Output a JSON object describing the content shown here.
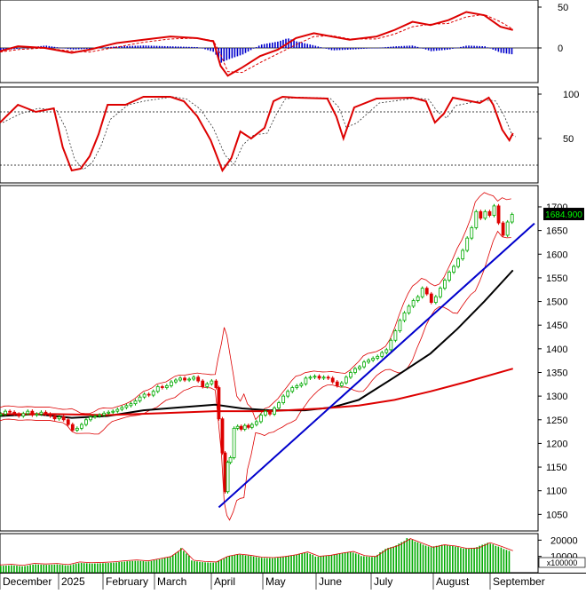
{
  "chart_data": {
    "type": "line",
    "price_panel": {
      "title": "",
      "ylim": [
        1015,
        1745
      ],
      "y_ticks": [
        1050,
        1100,
        1150,
        1200,
        1250,
        1300,
        1350,
        1400,
        1450,
        1500,
        1550,
        1600,
        1650,
        1700
      ],
      "last_price_label": "1684.900",
      "candles_approx_close": [
        [
          0,
          1262
        ],
        [
          5,
          1268
        ],
        [
          10,
          1266
        ],
        [
          15,
          1262
        ],
        [
          20,
          1258
        ],
        [
          25,
          1263
        ],
        [
          30,
          1268
        ],
        [
          35,
          1260
        ],
        [
          40,
          1262
        ],
        [
          45,
          1266
        ],
        [
          50,
          1262
        ],
        [
          55,
          1258
        ],
        [
          60,
          1252
        ],
        [
          65,
          1256
        ],
        [
          70,
          1250
        ],
        [
          75,
          1240
        ],
        [
          80,
          1228
        ],
        [
          85,
          1232
        ],
        [
          90,
          1240
        ],
        [
          95,
          1250
        ],
        [
          100,
          1256
        ],
        [
          105,
          1258
        ],
        [
          110,
          1260
        ],
        [
          115,
          1264
        ],
        [
          120,
          1266
        ],
        [
          125,
          1268
        ],
        [
          130,
          1272
        ],
        [
          135,
          1276
        ],
        [
          140,
          1280
        ],
        [
          145,
          1284
        ],
        [
          150,
          1290
        ],
        [
          155,
          1298
        ],
        [
          160,
          1304
        ],
        [
          165,
          1302
        ],
        [
          170,
          1310
        ],
        [
          175,
          1320
        ],
        [
          180,
          1318
        ],
        [
          185,
          1322
        ],
        [
          190,
          1330
        ],
        [
          195,
          1334
        ],
        [
          200,
          1338
        ],
        [
          205,
          1334
        ],
        [
          210,
          1336
        ],
        [
          215,
          1340
        ],
        [
          220,
          1332
        ],
        [
          225,
          1320
        ],
        [
          230,
          1326
        ],
        [
          235,
          1332
        ],
        [
          240,
          1318
        ],
        [
          243,
          1252
        ],
        [
          247,
          1180
        ],
        [
          250,
          1098
        ],
        [
          253,
          1160
        ],
        [
          256,
          1170
        ],
        [
          260,
          1232
        ],
        [
          264,
          1236
        ],
        [
          268,
          1230
        ],
        [
          272,
          1238
        ],
        [
          276,
          1234
        ],
        [
          280,
          1240
        ],
        [
          285,
          1246
        ],
        [
          290,
          1260
        ],
        [
          295,
          1268
        ],
        [
          300,
          1262
        ],
        [
          305,
          1275
        ],
        [
          310,
          1286
        ],
        [
          315,
          1300
        ],
        [
          320,
          1310
        ],
        [
          325,
          1318
        ],
        [
          330,
          1322
        ],
        [
          335,
          1326
        ],
        [
          340,
          1338
        ],
        [
          345,
          1340
        ],
        [
          350,
          1342
        ],
        [
          355,
          1338
        ],
        [
          360,
          1340
        ],
        [
          365,
          1338
        ],
        [
          370,
          1330
        ],
        [
          375,
          1322
        ],
        [
          380,
          1328
        ],
        [
          385,
          1340
        ],
        [
          390,
          1350
        ],
        [
          395,
          1358
        ],
        [
          400,
          1362
        ],
        [
          405,
          1372
        ],
        [
          410,
          1376
        ],
        [
          415,
          1380
        ],
        [
          420,
          1384
        ],
        [
          425,
          1392
        ],
        [
          430,
          1398
        ],
        [
          435,
          1418
        ],
        [
          440,
          1438
        ],
        [
          445,
          1460
        ],
        [
          450,
          1476
        ],
        [
          455,
          1490
        ],
        [
          460,
          1502
        ],
        [
          465,
          1510
        ],
        [
          470,
          1528
        ],
        [
          475,
          1516
        ],
        [
          480,
          1498
        ],
        [
          485,
          1510
        ],
        [
          490,
          1528
        ],
        [
          495,
          1545
        ],
        [
          500,
          1562
        ],
        [
          505,
          1574
        ],
        [
          510,
          1590
        ],
        [
          515,
          1608
        ],
        [
          520,
          1634
        ],
        [
          525,
          1656
        ],
        [
          530,
          1690
        ],
        [
          535,
          1676
        ],
        [
          540,
          1690
        ],
        [
          545,
          1682
        ],
        [
          550,
          1702
        ],
        [
          555,
          1666
        ],
        [
          560,
          1640
        ],
        [
          565,
          1668
        ],
        [
          570,
          1684
        ]
      ],
      "series": [
        {
          "name": "",
          "color": "#000000",
          "values": [
            [
              0,
              1258
            ],
            [
              40,
              1262
            ],
            [
              80,
              1254
            ],
            [
              120,
              1258
            ],
            [
              160,
              1270
            ],
            [
              200,
              1276
            ],
            [
              240,
              1282
            ],
            [
              270,
              1274
            ],
            [
              300,
              1270
            ],
            [
              340,
              1270
            ],
            [
              370,
              1276
            ],
            [
              400,
              1292
            ],
            [
              440,
              1340
            ],
            [
              480,
              1390
            ],
            [
              510,
              1442
            ],
            [
              540,
              1500
            ],
            [
              572,
              1566
            ]
          ]
        },
        {
          "name": "",
          "color": "#dd0000",
          "values": [
            [
              0,
              1262
            ],
            [
              60,
              1262
            ],
            [
              120,
              1260
            ],
            [
              180,
              1264
            ],
            [
              240,
              1268
            ],
            [
              300,
              1268
            ],
            [
              360,
              1274
            ],
            [
              400,
              1280
            ],
            [
              440,
              1292
            ],
            [
              480,
              1310
            ],
            [
              520,
              1330
            ],
            [
              572,
              1358
            ]
          ]
        }
      ],
      "trendline": {
        "color": "#0000cc",
        "from": [
          244,
          1065
        ],
        "to": [
          596,
          1665
        ]
      }
    },
    "stochastic_panel": {
      "y_ticks": [
        50,
        100
      ],
      "overbought": 80,
      "oversold": 20,
      "values": [
        [
          0,
          68
        ],
        [
          20,
          88
        ],
        [
          40,
          80
        ],
        [
          60,
          84
        ],
        [
          70,
          40
        ],
        [
          80,
          14
        ],
        [
          90,
          16
        ],
        [
          100,
          30
        ],
        [
          110,
          55
        ],
        [
          120,
          88
        ],
        [
          140,
          88
        ],
        [
          160,
          97
        ],
        [
          190,
          97
        ],
        [
          205,
          92
        ],
        [
          220,
          75
        ],
        [
          235,
          48
        ],
        [
          248,
          14
        ],
        [
          258,
          28
        ],
        [
          268,
          58
        ],
        [
          280,
          50
        ],
        [
          295,
          62
        ],
        [
          305,
          92
        ],
        [
          315,
          97
        ],
        [
          330,
          96
        ],
        [
          365,
          95
        ],
        [
          375,
          75
        ],
        [
          383,
          50
        ],
        [
          395,
          85
        ],
        [
          420,
          95
        ],
        [
          460,
          96
        ],
        [
          475,
          92
        ],
        [
          485,
          68
        ],
        [
          495,
          78
        ],
        [
          505,
          96
        ],
        [
          535,
          90
        ],
        [
          545,
          96
        ],
        [
          550,
          88
        ],
        [
          560,
          60
        ],
        [
          568,
          48
        ],
        [
          572,
          56
        ]
      ]
    },
    "macd_panel": {
      "y_ticks": [
        0,
        50
      ],
      "macd": [
        [
          0,
          -4
        ],
        [
          20,
          2
        ],
        [
          50,
          0
        ],
        [
          80,
          -6
        ],
        [
          100,
          -2
        ],
        [
          130,
          6
        ],
        [
          160,
          10
        ],
        [
          190,
          14
        ],
        [
          220,
          12
        ],
        [
          238,
          8
        ],
        [
          246,
          -22
        ],
        [
          254,
          -34
        ],
        [
          270,
          -24
        ],
        [
          290,
          -10
        ],
        [
          310,
          -2
        ],
        [
          330,
          12
        ],
        [
          350,
          18
        ],
        [
          370,
          14
        ],
        [
          390,
          10
        ],
        [
          420,
          14
        ],
        [
          440,
          22
        ],
        [
          460,
          32
        ],
        [
          480,
          28
        ],
        [
          500,
          34
        ],
        [
          520,
          44
        ],
        [
          540,
          40
        ],
        [
          558,
          26
        ],
        [
          572,
          22
        ]
      ],
      "histogram": [
        [
          0,
          -3
        ],
        [
          20,
          -1
        ],
        [
          50,
          3
        ],
        [
          80,
          -2
        ],
        [
          100,
          -1
        ],
        [
          130,
          2
        ],
        [
          160,
          3
        ],
        [
          190,
          2
        ],
        [
          220,
          1
        ],
        [
          238,
          -5
        ],
        [
          246,
          -18
        ],
        [
          254,
          -14
        ],
        [
          270,
          -8
        ],
        [
          290,
          4
        ],
        [
          310,
          8
        ],
        [
          320,
          12
        ],
        [
          330,
          8
        ],
        [
          350,
          3
        ],
        [
          370,
          -3
        ],
        [
          390,
          -2
        ],
        [
          420,
          0
        ],
        [
          440,
          2
        ],
        [
          460,
          3
        ],
        [
          480,
          -4
        ],
        [
          500,
          -2
        ],
        [
          520,
          3
        ],
        [
          540,
          2
        ],
        [
          558,
          -6
        ],
        [
          572,
          -8
        ]
      ]
    },
    "volume_panel": {
      "y_ticks": [
        10000,
        20000
      ],
      "unit_label": "x100000",
      "bars_approx": [
        4200,
        4600,
        3900,
        5200,
        4800,
        5100,
        4400,
        6100,
        5600,
        5800,
        6200,
        6900,
        7400,
        6800,
        8200,
        9600,
        14800,
        7200,
        6400,
        6100,
        9800,
        11200,
        10400,
        9200,
        8900,
        9600,
        10800,
        12600,
        9800,
        10400,
        11800,
        12900,
        10200,
        9600,
        14500,
        16800,
        21200,
        18400,
        15600,
        17200,
        16400,
        14800,
        15200,
        18600,
        16200,
        13400
      ]
    },
    "x_axis": {
      "labels": [
        "December",
        "2025",
        "February",
        "March",
        "April",
        "May",
        "June",
        "July",
        "August",
        "September"
      ]
    }
  }
}
